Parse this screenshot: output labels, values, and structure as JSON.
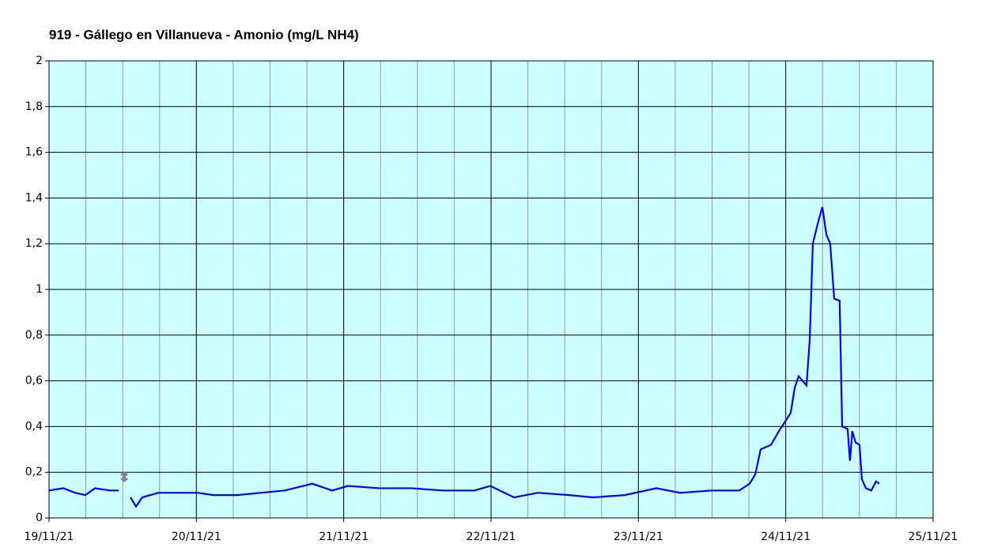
{
  "chart_data": {
    "type": "line",
    "title": "919 - Gállego en Villanueva - Amonio (mg/L NH4)",
    "xlim": [
      0,
      6
    ],
    "xticks": [
      {
        "value": 0,
        "label": "19/11/21"
      },
      {
        "value": 1,
        "label": "20/11/21"
      },
      {
        "value": 2,
        "label": "21/11/21"
      },
      {
        "value": 3,
        "label": "22/11/21"
      },
      {
        "value": 4,
        "label": "23/11/21"
      },
      {
        "value": 5,
        "label": "24/11/21"
      },
      {
        "value": 6,
        "label": "25/11/21"
      }
    ],
    "xminorticks": [
      0.25,
      0.5,
      0.75,
      1.25,
      1.5,
      1.75,
      2.25,
      2.5,
      2.75,
      3.25,
      3.5,
      3.75,
      4.25,
      4.5,
      4.75,
      5.25,
      5.5,
      5.75
    ],
    "ylim": [
      0,
      2
    ],
    "yticks": [
      0,
      {
        "value": 0.2,
        "label": "0,2"
      },
      {
        "value": 0.4,
        "label": "0,4"
      },
      {
        "value": 0.6,
        "label": "0,6"
      },
      {
        "value": 0.8,
        "label": "0,8"
      },
      1,
      {
        "value": 1.2,
        "label": "1,2"
      },
      {
        "value": 1.4,
        "label": "1,4"
      },
      {
        "value": 1.6,
        "label": "1,6"
      },
      {
        "value": 1.8,
        "label": "1,8"
      },
      2
    ],
    "grid": true,
    "background": "#ccffff",
    "series": [
      {
        "color": "#0000ff",
        "x": [
          0,
          0.097,
          0.177,
          0.247,
          0.311,
          0.419,
          0.472,
          0.51,
          0.553,
          0.59,
          0.633,
          0.741,
          0.848,
          1.009,
          1.116,
          1.277,
          1.438,
          1.599,
          1.787,
          1.921,
          2.029,
          2.243,
          2.458,
          2.673,
          2.887,
          2.995,
          3.156,
          3.317,
          3.531,
          3.692,
          3.907,
          4.122,
          4.283,
          4.497,
          4.685,
          4.755,
          4.793,
          4.83,
          4.9,
          4.954,
          5.034,
          5.061,
          5.088,
          5.141,
          5.163,
          5.184,
          5.222,
          5.249,
          5.276,
          5.302,
          5.329,
          5.366,
          5.383,
          5.42,
          5.436,
          5.452,
          5.474,
          5.501,
          5.517,
          5.544,
          5.581,
          5.613,
          5.635
        ],
        "values": [
          0.12,
          0.13,
          0.11,
          0.1,
          0.13,
          0.12,
          0.12,
          null,
          0.09,
          0.05,
          0.09,
          0.11,
          0.11,
          0.11,
          0.1,
          0.1,
          0.11,
          0.12,
          0.15,
          0.12,
          0.14,
          0.13,
          0.13,
          0.12,
          0.12,
          0.14,
          0.09,
          0.11,
          0.1,
          0.09,
          0.1,
          0.13,
          0.11,
          0.12,
          0.12,
          0.15,
          0.19,
          0.3,
          0.32,
          0.38,
          0.46,
          0.57,
          0.62,
          0.58,
          0.78,
          1.2,
          1.3,
          1.36,
          1.24,
          1.2,
          0.96,
          0.95,
          0.4,
          0.39,
          0.25,
          0.38,
          0.33,
          0.32,
          0.17,
          0.13,
          0.12,
          0.16,
          0.15
        ]
      },
      {
        "color": "#888888",
        "marker": "diamond",
        "x": [
          0.51,
          0.51
        ],
        "values": [
          0.19,
          0.17
        ]
      }
    ]
  }
}
